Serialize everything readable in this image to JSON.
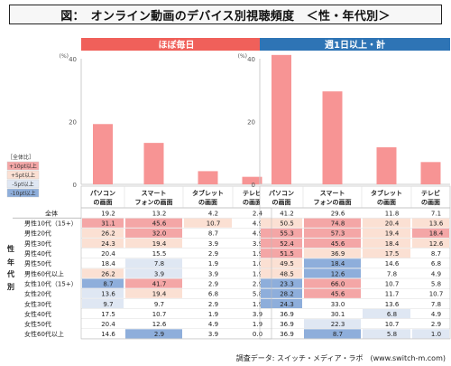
{
  "title": "図：　オンライン動画のデバイス別視聴頻度　＜性・年代別＞",
  "source": "調査データ: スイッチ・メディア・ラボ　(www.switch-m.com)",
  "chart_data": [
    {
      "type": "bar",
      "title": "ほぼ毎日",
      "header_color": "#f0605a",
      "unit": "(%)",
      "ylim": [
        0,
        40
      ],
      "yticks": [
        0,
        20,
        40
      ],
      "categories": [
        "パソコンの画面",
        "スマートフォンの画面",
        "タブレットの画面",
        "テレビの画面"
      ],
      "category_lines": [
        [
          "パソコン",
          "の画面"
        ],
        [
          "スマート",
          "フォンの画面"
        ],
        [
          "タブレット",
          "の画面"
        ],
        [
          "テレビ",
          "の画面"
        ]
      ],
      "values": [
        19.2,
        13.2,
        4.2,
        2.4
      ]
    },
    {
      "type": "bar",
      "title": "週1日以上・計",
      "header_color": "#2e74b5",
      "unit": "(%)",
      "ylim": [
        0,
        40
      ],
      "yticks": [
        0,
        20,
        40
      ],
      "categories": [
        "パソコンの画面",
        "スマートフォンの画面",
        "タブレットの画面",
        "テレビの画面"
      ],
      "category_lines": [
        [
          "パソコン",
          "の画面"
        ],
        [
          "スマート",
          "フォンの画面"
        ],
        [
          "タブレット",
          "の画面"
        ],
        [
          "テレビ",
          "の画面"
        ]
      ],
      "values": [
        41.2,
        29.6,
        11.8,
        7.1
      ]
    }
  ],
  "legend": {
    "title": "［全体比］",
    "items": [
      {
        "label": "+10pt以上",
        "color": "#f4a6a6"
      },
      {
        "label": "+5pt以上",
        "color": "#fbe0d3"
      },
      {
        "label": "-5pt以上",
        "color": "#dfe7f3"
      },
      {
        "label": "-10pt以上",
        "color": "#8eaedb"
      }
    ]
  },
  "side_label": "性・年代別",
  "colors": {
    "bar": "#f79494",
    "p2": "#f4a6a6",
    "p1": "#fbe0d3",
    "m1": "#dfe7f3",
    "m2": "#8eaedb"
  },
  "table": {
    "rows": [
      {
        "label": "全体",
        "left": [
          19.2,
          13.2,
          4.2,
          2.4
        ],
        "right": [
          41.2,
          29.6,
          11.8,
          7.1
        ]
      },
      {
        "label": "男性10代（15+）",
        "left": [
          31.1,
          45.6,
          10.7,
          4.9
        ],
        "right": [
          50.5,
          74.8,
          20.4,
          13.6
        ]
      },
      {
        "label": "男性20代",
        "left": [
          26.2,
          32.0,
          8.7,
          4.9
        ],
        "right": [
          55.3,
          57.3,
          19.4,
          18.4
        ]
      },
      {
        "label": "男性30代",
        "left": [
          24.3,
          19.4,
          3.9,
          3.9
        ],
        "right": [
          52.4,
          45.6,
          18.4,
          12.6
        ]
      },
      {
        "label": "男性40代",
        "left": [
          20.4,
          15.5,
          2.9,
          1.9
        ],
        "right": [
          51.5,
          36.9,
          17.5,
          8.7
        ]
      },
      {
        "label": "男性50代",
        "left": [
          18.4,
          7.8,
          1.9,
          1.0
        ],
        "right": [
          49.5,
          18.4,
          14.6,
          6.8
        ]
      },
      {
        "label": "男性60代以上",
        "left": [
          26.2,
          3.9,
          3.9,
          1.9
        ],
        "right": [
          48.5,
          12.6,
          7.8,
          4.9
        ]
      },
      {
        "label": "女性10代（15+）",
        "left": [
          8.7,
          41.7,
          2.9,
          2.9
        ],
        "right": [
          23.3,
          66.0,
          10.7,
          5.8
        ]
      },
      {
        "label": "女性20代",
        "left": [
          13.6,
          19.4,
          6.8,
          5.8
        ],
        "right": [
          28.2,
          45.6,
          11.7,
          10.7
        ]
      },
      {
        "label": "女性30代",
        "left": [
          9.7,
          9.7,
          2.9,
          1.9
        ],
        "right": [
          24.3,
          33.0,
          13.6,
          7.8
        ]
      },
      {
        "label": "女性40代",
        "left": [
          17.5,
          10.7,
          1.9,
          3.9
        ],
        "right": [
          36.9,
          30.1,
          6.8,
          4.9
        ]
      },
      {
        "label": "女性50代",
        "left": [
          20.4,
          12.6,
          4.9,
          1.9
        ],
        "right": [
          36.9,
          22.3,
          10.7,
          2.9
        ]
      },
      {
        "label": "女性60代以上",
        "left": [
          14.6,
          2.9,
          3.9,
          0.0
        ],
        "right": [
          36.9,
          8.7,
          5.8,
          1.0
        ]
      }
    ]
  }
}
